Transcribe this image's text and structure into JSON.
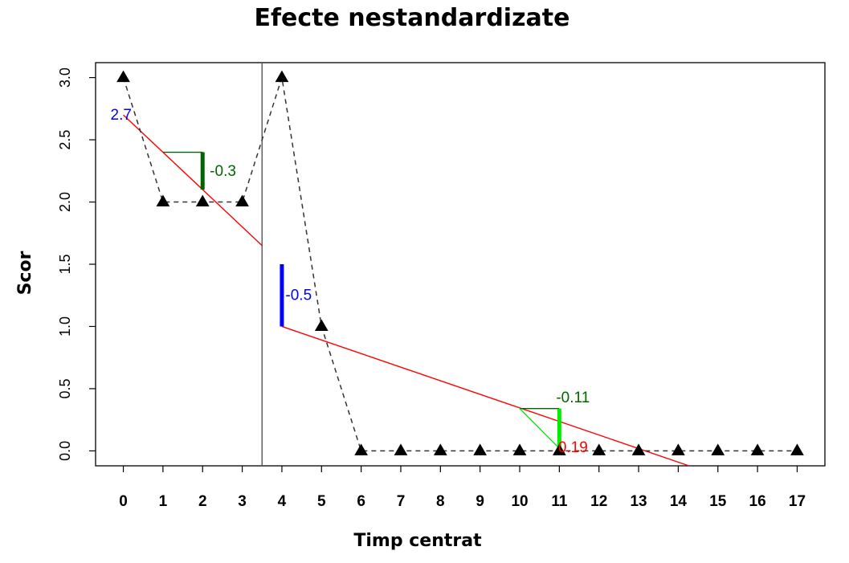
{
  "chart_data": {
    "type": "line",
    "title": "Efecte nestandardizate",
    "xlabel": "Timp centrat",
    "ylabel": "Scor",
    "xlim": [
      -0.7,
      17.7
    ],
    "ylim": [
      -0.12,
      3.12
    ],
    "x_ticks": [
      "0",
      "1",
      "2",
      "3",
      "4",
      "5",
      "6",
      "7",
      "8",
      "9",
      "10",
      "11",
      "12",
      "13",
      "14",
      "15",
      "16",
      "17"
    ],
    "y_ticks": [
      "0.0",
      "0.5",
      "1.0",
      "1.5",
      "2.0",
      "2.5",
      "3.0"
    ],
    "grid": false,
    "legend": "none",
    "x": [
      0,
      1,
      2,
      3,
      4,
      5,
      6,
      7,
      8,
      9,
      10,
      11,
      12,
      13,
      14,
      15,
      16,
      17
    ],
    "y": [
      3,
      2,
      2,
      2,
      3,
      1,
      0,
      0,
      0,
      0,
      0,
      0,
      0,
      0,
      0,
      0,
      0,
      0
    ],
    "phase_separator_x": 3.5,
    "fitted_lines": [
      {
        "x": [
          0,
          3.5
        ],
        "y": [
          2.7,
          1.65
        ]
      },
      {
        "x": [
          4,
          14.27
        ],
        "y": [
          1.0,
          -0.12
        ]
      }
    ],
    "annotations": [
      {
        "text": "2.7",
        "color": "#0000ff",
        "x": 0,
        "y": 2.7
      },
      {
        "text": "-0.3",
        "color": "#006400",
        "x": 2.1,
        "y": 2.25
      },
      {
        "text": "-0.5",
        "color": "#0000ff",
        "x": 4.05,
        "y": 1.25
      },
      {
        "text": "-0.11",
        "color": "#006400",
        "x": 11.0,
        "y": 0.43
      },
      {
        "text": "0.19",
        "color": "#ff0000",
        "x": 11.05,
        "y": 0.03
      }
    ],
    "colors": {
      "data": "#000000",
      "fit": "#ff0000",
      "phase_line": "#555555",
      "intercept": "#0000ff",
      "slope_phase1": "#006400",
      "slope_phase2": "#00ee00"
    }
  }
}
